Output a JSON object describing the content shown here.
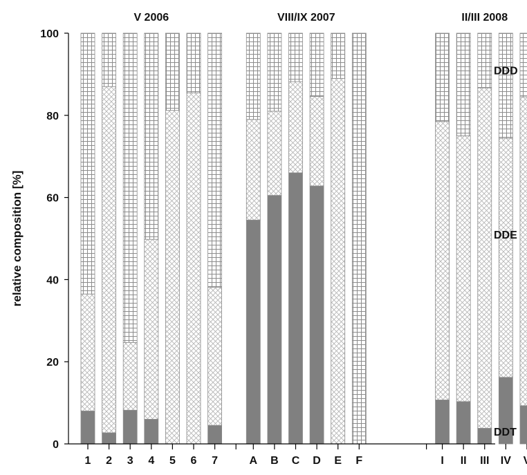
{
  "chart_data": {
    "type": "bar",
    "stacked": true,
    "ylabel": "relative composition [%]",
    "ylim": [
      0,
      100
    ],
    "yticks": [
      0,
      20,
      40,
      60,
      80,
      100
    ],
    "groups": [
      {
        "title": "V 2006",
        "categories": [
          "1",
          "2",
          "3",
          "4",
          "5",
          "6",
          "7"
        ]
      },
      {
        "title": "VIII/IX 2007",
        "categories": [
          "A",
          "B",
          "C",
          "D",
          "E",
          "F"
        ]
      },
      {
        "title": "II/III 2008",
        "categories": [
          "I",
          "II",
          "III",
          "IV",
          "V"
        ]
      }
    ],
    "series": [
      {
        "name": "DDT",
        "fill": "solid",
        "values": [
          8,
          2.7,
          8.2,
          6,
          0,
          0,
          4.5,
          54.5,
          60.5,
          66,
          62.8,
          0,
          0,
          10.7,
          10.3,
          3.8,
          16.2,
          9.3
        ]
      },
      {
        "name": "DDE",
        "fill": "crosshatch",
        "values": [
          28.5,
          84.3,
          16.5,
          43.8,
          81.2,
          85.5,
          33.6,
          24.5,
          20.5,
          22.2,
          21.8,
          89,
          0,
          67.8,
          64.7,
          82.9,
          58.2,
          75.2
        ]
      },
      {
        "name": "DDD",
        "fill": "grid",
        "values": [
          63.5,
          13,
          75.3,
          50.2,
          18.8,
          14.5,
          61.9,
          21,
          19,
          11.8,
          15.4,
          11,
          100,
          21.5,
          25,
          13.3,
          25.6,
          15.5
        ]
      }
    ],
    "colors": {
      "solid": "#808080",
      "outline": "#8a8a8a",
      "axis": "#000000"
    },
    "grid": false,
    "legend_placement": "right"
  }
}
